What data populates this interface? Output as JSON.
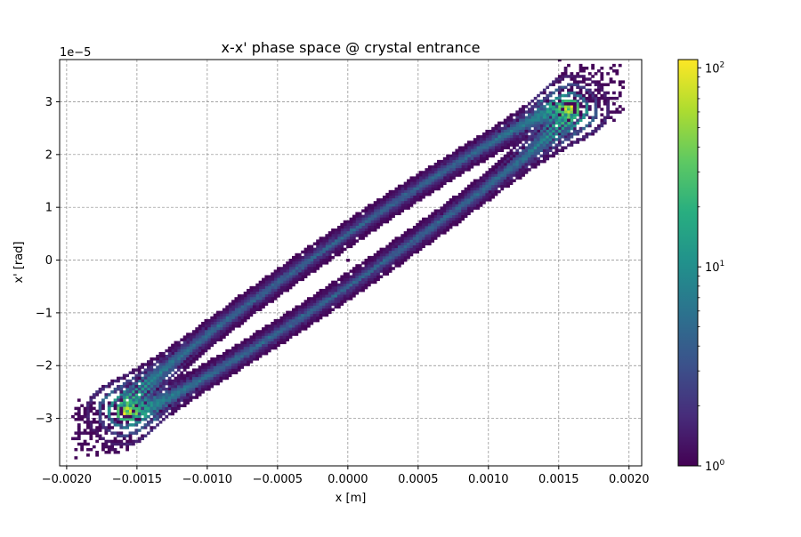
{
  "chart_data": {
    "type": "heatmap",
    "title": "x-x' phase space @ crystal entrance",
    "xlabel": "x [m]",
    "ylabel": "x' [rad]",
    "y_offset_label": "1e−5",
    "xlim": [
      -0.00205,
      0.00209
    ],
    "ylim": [
      -3.9,
      3.8
    ],
    "y_scale_factor": 1e-05,
    "grid": true,
    "grid_style": "dashed",
    "x_ticks": [
      -0.002,
      -0.0015,
      -0.001,
      -0.0005,
      0.0,
      0.0005,
      0.001,
      0.0015,
      0.002
    ],
    "x_tick_labels": [
      "−0.0020",
      "−0.0015",
      "−0.0010",
      "−0.0005",
      "0.0000",
      "0.0005",
      "0.0010",
      "0.0015",
      "0.0020"
    ],
    "y_ticks": [
      -3,
      -2,
      -1,
      0,
      1,
      2,
      3
    ],
    "y_tick_labels": [
      "−3",
      "−2",
      "−1",
      "0",
      "1",
      "2",
      "3"
    ],
    "ellipse": {
      "description_points_units": "x in m, x' in 1e-5 rad",
      "upper_left_tip": [
        -0.00162,
        -2.9
      ],
      "lower_right_tip": [
        0.00162,
        2.9
      ],
      "min_y_point": [
        -0.00155,
        -2.9
      ],
      "max_y_point": [
        0.00155,
        2.9
      ],
      "x_at_y0": [
        -0.00025,
        0.00025
      ]
    },
    "colorbar": {
      "scale": "log",
      "colormap": "viridis",
      "range": [
        1,
        110
      ],
      "ticks": [
        1,
        10,
        100
      ],
      "tick_labels": [
        {
          "base": "10",
          "exp": "0"
        },
        {
          "base": "10",
          "exp": "1"
        },
        {
          "base": "10",
          "exp": "2"
        }
      ]
    }
  }
}
